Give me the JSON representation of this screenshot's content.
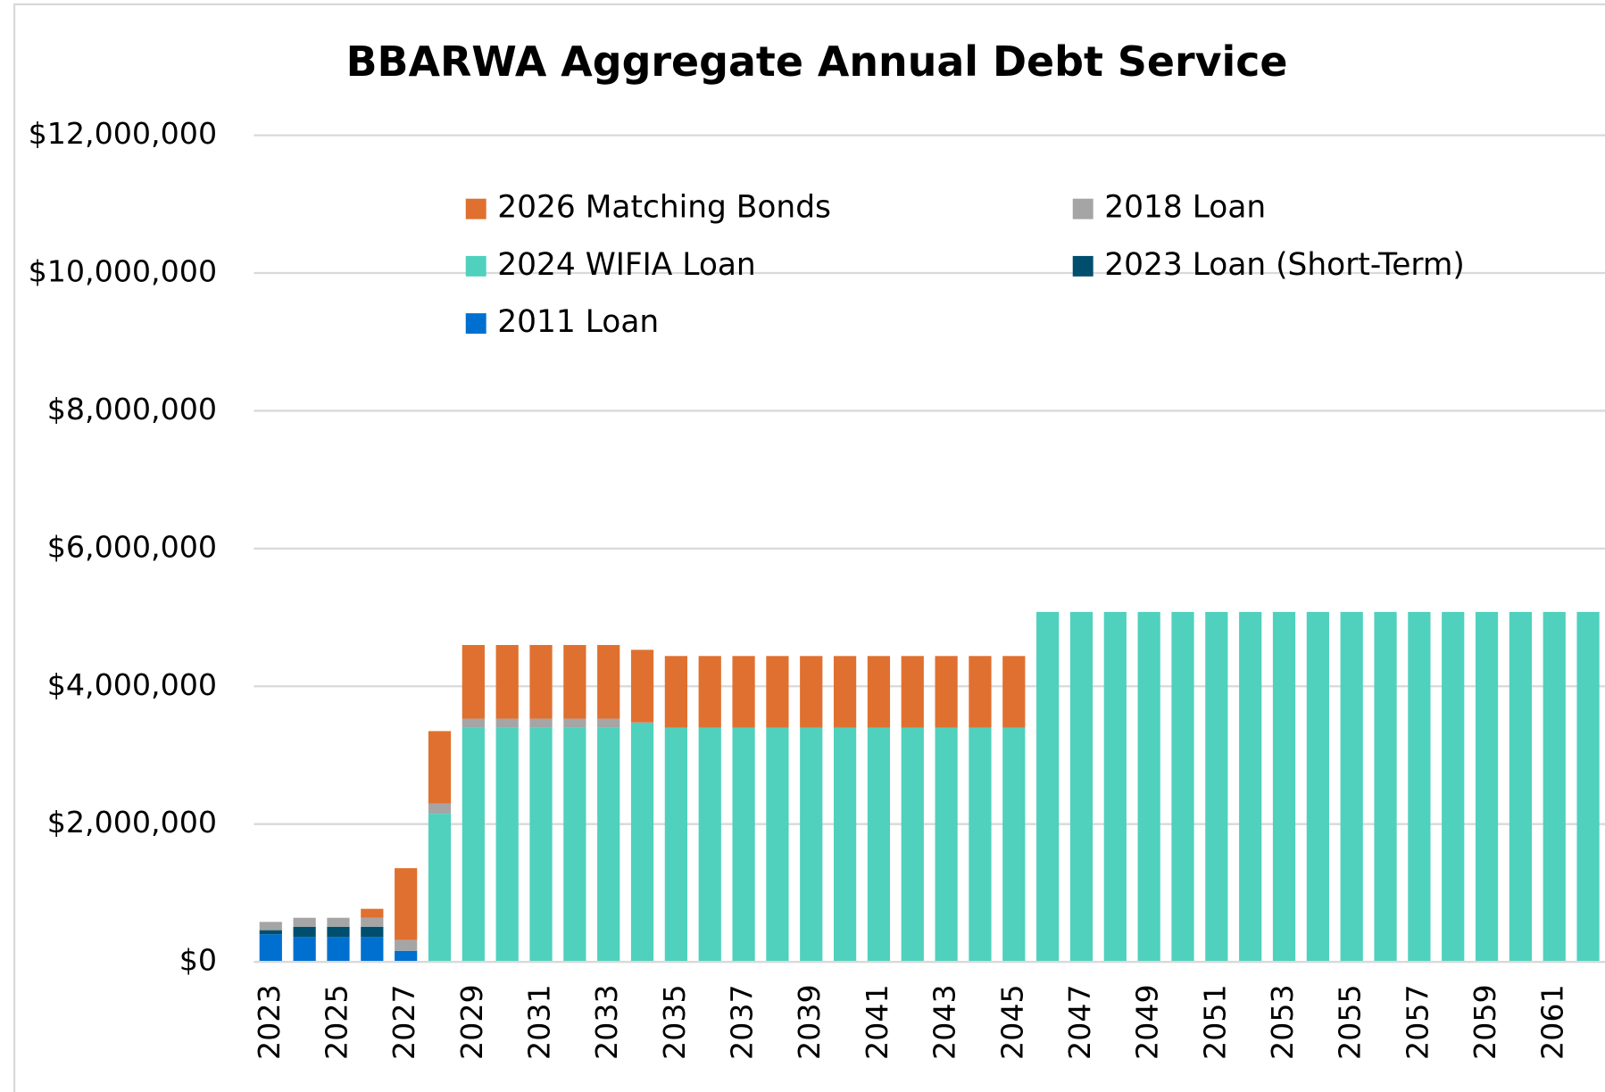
{
  "chart_data": {
    "type": "stacked_bar",
    "title": "BBARWA Aggregate Annual Debt Service",
    "categories": [
      "2023",
      null,
      "2025",
      null,
      "2027",
      null,
      "2029",
      null,
      "2031",
      null,
      "2033",
      null,
      "2035",
      null,
      "2037",
      null,
      "2039",
      null,
      "2041",
      null,
      "2043",
      null,
      "2045",
      null,
      "2047",
      null,
      "2049",
      null,
      "2051",
      null,
      "2053",
      null,
      "2055",
      null,
      "2057",
      null,
      "2059",
      null,
      "2061",
      null
    ],
    "series": [
      {
        "name": "2026 Matching Bonds",
        "color": "#E0702F",
        "values": [
          null,
          null,
          null,
          130000,
          1040000,
          1050000,
          1070000,
          1070000,
          1070000,
          1070000,
          1070000,
          1050000,
          1040000,
          1040000,
          1040000,
          1040000,
          1040000,
          1040000,
          1040000,
          1040000,
          1040000,
          1040000,
          1040000,
          null,
          null,
          null,
          null,
          null,
          null,
          null,
          null,
          null,
          null,
          null,
          null,
          null,
          null,
          null,
          null,
          null
        ]
      },
      {
        "name": "2018 Loan",
        "color": "#A5A5A5",
        "values": [
          120000,
          130000,
          130000,
          130000,
          160000,
          150000,
          130000,
          130000,
          130000,
          130000,
          130000,
          20000,
          null,
          null,
          null,
          null,
          null,
          null,
          null,
          null,
          null,
          null,
          null,
          null,
          null,
          null,
          null,
          null,
          null,
          null,
          null,
          null,
          null,
          null,
          null,
          null,
          null,
          null,
          null,
          null
        ]
      },
      {
        "name": "2024 WIFIA Loan",
        "color": "#4FD1BD",
        "values": [
          null,
          null,
          null,
          null,
          null,
          2150000,
          3400000,
          3400000,
          3400000,
          3400000,
          3400000,
          3460000,
          3400000,
          3400000,
          3400000,
          3400000,
          3400000,
          3400000,
          3400000,
          3400000,
          3400000,
          3400000,
          3400000,
          5080000,
          5080000,
          5080000,
          5080000,
          5080000,
          5080000,
          5080000,
          5080000,
          5080000,
          5080000,
          5080000,
          5080000,
          5080000,
          5080000,
          5080000,
          5080000,
          5080000
        ]
      },
      {
        "name": "2023 Loan (Short-Term)",
        "color": "#004E6E",
        "values": [
          60000,
          150000,
          150000,
          150000,
          null,
          null,
          null,
          null,
          null,
          null,
          null,
          null,
          null,
          null,
          null,
          null,
          null,
          null,
          null,
          null,
          null,
          null,
          null,
          null,
          null,
          null,
          null,
          null,
          null,
          null,
          null,
          null,
          null,
          null,
          null,
          null,
          null,
          null,
          null,
          null
        ]
      },
      {
        "name": "2011 Loan",
        "color": "#0070D0",
        "values": [
          400000,
          360000,
          360000,
          360000,
          160000,
          null,
          null,
          null,
          null,
          null,
          null,
          null,
          null,
          null,
          null,
          null,
          null,
          null,
          null,
          null,
          null,
          null,
          null,
          null,
          null,
          null,
          null,
          null,
          null,
          null,
          null,
          null,
          null,
          null,
          null,
          null,
          null,
          null,
          null,
          null
        ]
      }
    ],
    "ylim": [
      0,
      12000000
    ],
    "yticks": [
      {
        "value": 0,
        "label": "$0"
      },
      {
        "value": 2000000,
        "label": "$2,000,000"
      },
      {
        "value": 4000000,
        "label": "$4,000,000"
      },
      {
        "value": 6000000,
        "label": "$6,000,000"
      },
      {
        "value": 8000000,
        "label": "$8,000,000"
      },
      {
        "value": 10000000,
        "label": "$10,000,000"
      },
      {
        "value": 12000000,
        "label": "$12,000,000"
      }
    ],
    "grid": true
  }
}
